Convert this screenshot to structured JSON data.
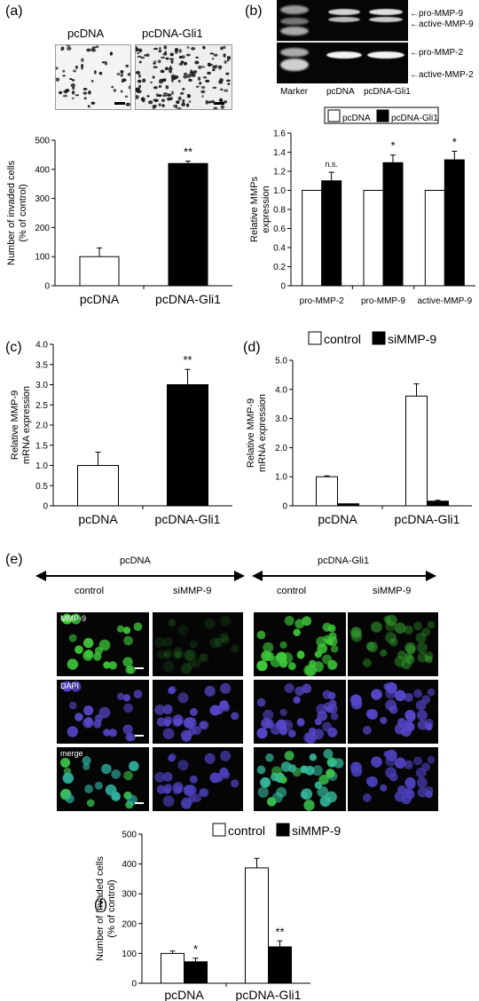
{
  "colors": {
    "black": "#000000",
    "white": "#ffffff",
    "gel": "#050505",
    "mmp9_green": "#3fc23a",
    "dapi_blue": "#4a3fb8",
    "merge_cyan": "#2aa9a0"
  },
  "panel_a": {
    "label": "(a)",
    "image_labels": [
      "pcDNA",
      "pcDNA-Gli1"
    ]
  },
  "panel_b": {
    "label": "(b)",
    "band_labels": [
      "pro-MMP-9",
      "active-MMP-9",
      "pro-MMP-2",
      "active-MMP-2"
    ],
    "lane_labels": [
      "Marker",
      "pcDNA",
      "pcDNA-Gli1"
    ]
  },
  "panel_e": {
    "label": "(e)",
    "group_labels": [
      "pcDNA",
      "pcDNA-Gli1"
    ],
    "column_labels": [
      "control",
      "siMMP-9",
      "control",
      "siMMP-9"
    ],
    "row_labels": [
      "MMP-9",
      "DAPI",
      "merge"
    ]
  },
  "chart_data": [
    {
      "id": "a",
      "label": "(a)",
      "type": "bar",
      "categories": [
        "pcDNA",
        "pcDNA-Gli1"
      ],
      "series": [
        {
          "values": [
            100,
            420
          ],
          "errors": [
            30,
            8
          ],
          "fills": [
            "white",
            "black"
          ]
        }
      ],
      "annotations": [
        "",
        "**"
      ],
      "ylabel": "Number of invaded cells\n(% of control)",
      "ylim": [
        0,
        500
      ],
      "yticks": [
        "0",
        "100",
        "200",
        "300",
        "400",
        "500"
      ]
    },
    {
      "id": "b",
      "label": "(b)",
      "type": "bar",
      "categories": [
        "pro-MMP-2",
        "pro-MMP-9",
        "active-MMP-9"
      ],
      "series": [
        {
          "name": "pcDNA",
          "values": [
            1.0,
            1.0,
            1.0
          ],
          "errors": [
            0,
            0,
            0
          ],
          "fill": "white"
        },
        {
          "name": "pcDNA-Gli1",
          "values": [
            1.1,
            1.29,
            1.32
          ],
          "errors": [
            0.09,
            0.08,
            0.09
          ],
          "fill": "black"
        }
      ],
      "annotations": [
        "n.s.",
        "*",
        "*"
      ],
      "ylabel": "Relative MMPs\nexpression",
      "ylim": [
        0,
        1.6
      ],
      "yticks": [
        "0",
        "0.2",
        "0.4",
        "0.6",
        "0.8",
        "1.0",
        "1.2",
        "1.4",
        "1.6"
      ],
      "legend": "top"
    },
    {
      "id": "c",
      "label": "(c)",
      "type": "bar",
      "categories": [
        "pcDNA",
        "pcDNA-Gli1"
      ],
      "series": [
        {
          "values": [
            1.0,
            3.0
          ],
          "errors": [
            0.33,
            0.38
          ],
          "fills": [
            "white",
            "black"
          ]
        }
      ],
      "annotations": [
        "",
        "**"
      ],
      "ylabel_lines": [
        "Relative MMP-9",
        "mRNA   expression"
      ],
      "ylim": [
        0,
        4.0
      ],
      "yticks": [
        "0",
        "0.5",
        "1.0",
        "1.5",
        "2.0",
        "2.5",
        "3.0",
        "3.5",
        "4.0"
      ]
    },
    {
      "id": "d",
      "label": "(d)",
      "type": "bar",
      "categories": [
        "pcDNA",
        "pcDNA-Gli1"
      ],
      "series": [
        {
          "name": "control",
          "values": [
            1.0,
            3.77
          ],
          "errors": [
            0.03,
            0.42
          ],
          "fill": "white"
        },
        {
          "name": "siMMP-9",
          "values": [
            0.07,
            0.16
          ],
          "errors": [
            0,
            0.03
          ],
          "fill": "black"
        }
      ],
      "ylabel_lines": [
        "Relative MMP-9",
        "mRNA   expression"
      ],
      "ylim": [
        0,
        5.0
      ],
      "yticks": [
        "0",
        "1.0",
        "2.0",
        "3.0",
        "4.0",
        "5.0"
      ],
      "legend": "top"
    },
    {
      "id": "f",
      "label": "(f)",
      "type": "bar",
      "categories": [
        "pcDNA",
        "pcDNA-Gli1"
      ],
      "series": [
        {
          "name": "control",
          "values": [
            100,
            387
          ],
          "errors": [
            8,
            32
          ],
          "fill": "white"
        },
        {
          "name": "siMMP-9",
          "values": [
            72,
            122
          ],
          "errors": [
            12,
            20
          ],
          "fill": "black"
        }
      ],
      "annotations": [
        "*",
        "**"
      ],
      "ylabel": "Number of invaded cells\n(% of control)",
      "ylim": [
        0,
        500
      ],
      "yticks": [
        "0",
        "100",
        "200",
        "300",
        "400",
        "500"
      ],
      "legend": "top"
    }
  ]
}
